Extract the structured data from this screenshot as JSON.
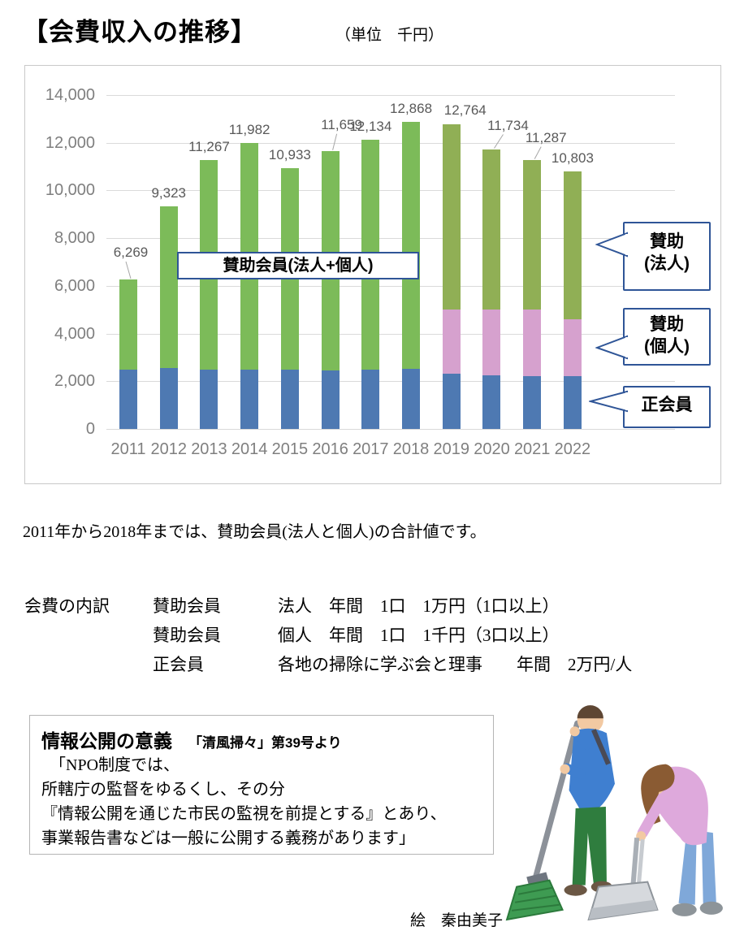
{
  "page": {
    "title": "【会費収入の推移】",
    "unit_note": "（単位　千円）",
    "footnote": "2011年から2018年までは、賛助会員(法人と個人)の合計値です。",
    "credit": "絵　秦由美子"
  },
  "chart_data": {
    "type": "bar",
    "stacked": true,
    "title": "会費収入の推移",
    "unit": "千円",
    "ylim": [
      0,
      14000
    ],
    "grid": true,
    "legend_position": "right-callouts",
    "y_ticks": [
      "0",
      "2,000",
      "4,000",
      "6,000",
      "8,000",
      "10,000",
      "12,000",
      "14,000"
    ],
    "y_tick_values": [
      0,
      2000,
      4000,
      6000,
      8000,
      10000,
      12000,
      14000
    ],
    "categories": [
      "2011",
      "2012",
      "2013",
      "2014",
      "2015",
      "2016",
      "2017",
      "2018",
      "2019",
      "2020",
      "2021",
      "2022"
    ],
    "totals": [
      6269,
      9323,
      11267,
      11982,
      10933,
      11659,
      12134,
      12868,
      12764,
      11734,
      11287,
      10803
    ],
    "total_labels": [
      "6,269",
      "9,323",
      "11,267",
      "11,982",
      "10,933",
      "11,659",
      "12,134",
      "12,868",
      "12,764",
      "11,734",
      "11,287",
      "10,803"
    ],
    "series": [
      {
        "name": "正会員",
        "color": "#4e79b2",
        "values": [
          2500,
          2550,
          2500,
          2500,
          2500,
          2450,
          2480,
          2520,
          2300,
          2250,
          2200,
          2200
        ]
      },
      {
        "name": "賛助(個人)",
        "color": "#d6a1ce",
        "values": [
          0,
          0,
          0,
          0,
          0,
          0,
          0,
          0,
          2700,
          2750,
          2800,
          2400
        ]
      },
      {
        "name": "賛助(法人)",
        "color": "#90af55",
        "color_2011_2018": "#7cbb59",
        "note_2011_2018": "2011〜2018は法人+個人の合計",
        "values": [
          3769,
          6773,
          8767,
          9482,
          8433,
          9209,
          9654,
          10348,
          7764,
          6734,
          6287,
          6203
        ]
      }
    ],
    "overlay_label": "賛助会員(法人+個人)",
    "callouts": [
      {
        "lines": [
          "賛助",
          "(法人)"
        ]
      },
      {
        "lines": [
          "賛助",
          "(個人)"
        ]
      },
      {
        "lines": [
          "正会員"
        ]
      }
    ]
  },
  "fees": {
    "heading": "会費の内訳",
    "rows": [
      {
        "member": "賛助会員",
        "detail": "法人　年間　1口　1万円（1口以上）"
      },
      {
        "member": "賛助会員",
        "detail": "個人　年間　1口　1千円（3口以上）"
      },
      {
        "member": "正会員",
        "detail": "各地の掃除に学ぶ会と理事　　年間　2万円/人"
      }
    ]
  },
  "info_box": {
    "title": "情報公開の意義",
    "source": "「清風掃々」第39号より",
    "lines": [
      "　「NPO制度では、",
      "所轄庁の監督をゆるくし、その分",
      "『情報公開を通じた市民の監視を前提とする』とあり、",
      "事業報告書などは一般に公開する義務があります」"
    ]
  }
}
